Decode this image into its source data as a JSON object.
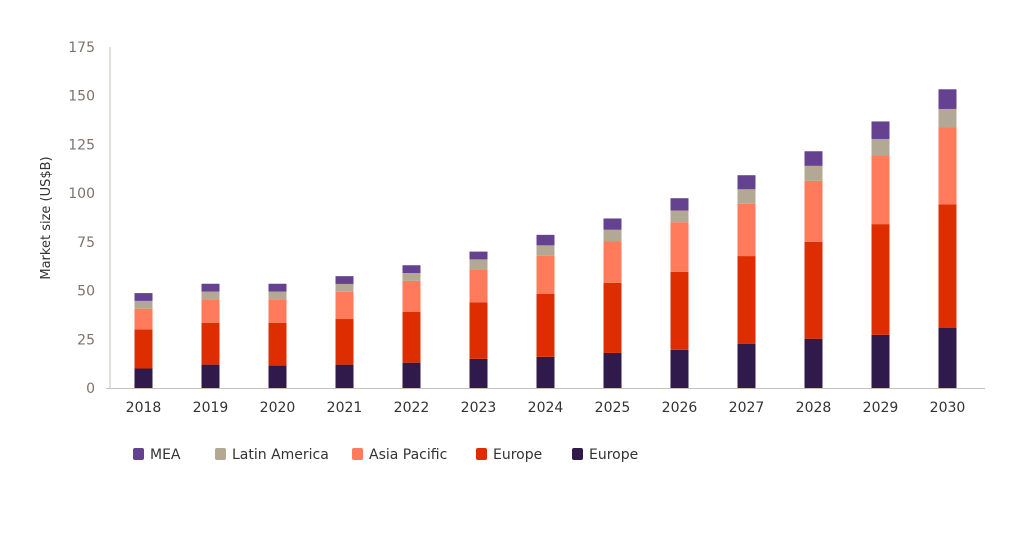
{
  "chart_data": {
    "type": "bar",
    "stacked": true,
    "title": "",
    "xlabel": "",
    "ylabel": "Market size (US$B)",
    "ylim": [
      0,
      175
    ],
    "yticks": [
      0,
      25,
      50,
      75,
      100,
      125,
      150,
      175
    ],
    "grid": false,
    "legend_position": "bottom",
    "categories": [
      "2018",
      "2019",
      "2020",
      "2021",
      "2022",
      "2023",
      "2024",
      "2025",
      "2026",
      "2027",
      "2028",
      "2029",
      "2030"
    ],
    "series": [
      {
        "name": "Europe",
        "color": "#2f1a4b",
        "values": [
          10,
          12,
          11.5,
          12,
          13,
          15,
          16,
          18,
          19.6,
          22.6,
          25.3,
          27.3,
          30.8
        ]
      },
      {
        "name": "Europe",
        "color": "#de2d00",
        "values": [
          20,
          21.5,
          22,
          23.4,
          26,
          29,
          32.4,
          36,
          40,
          45.1,
          49.7,
          56.8,
          63.4
        ]
      },
      {
        "name": "Asia Pacific",
        "color": "#ff7b5c",
        "values": [
          10.7,
          12,
          12,
          14,
          16,
          17,
          19.5,
          21.4,
          25.5,
          26.8,
          31.3,
          35.2,
          39.5
        ]
      },
      {
        "name": "Latin America",
        "color": "#b3a894",
        "values": [
          4,
          4,
          4,
          4,
          4,
          5,
          5.3,
          5.8,
          6,
          7.5,
          7.7,
          8.5,
          9.5
        ]
      },
      {
        "name": "MEA",
        "color": "#654290",
        "values": [
          4,
          4,
          4,
          4,
          4,
          4,
          5.4,
          5.8,
          6.3,
          7.2,
          7.5,
          9,
          10.1
        ]
      }
    ],
    "legend_order": [
      4,
      3,
      2,
      1,
      0
    ]
  }
}
